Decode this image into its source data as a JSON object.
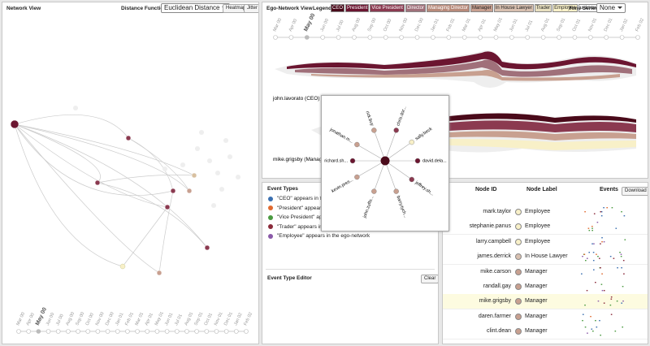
{
  "network": {
    "title": "Network View",
    "distance_label": "Distance Function:",
    "distance_value": "Euclidean Distance",
    "heatmap": "Heatmap",
    "jitter": "Jitter",
    "timeline": [
      "Mar 00",
      "Apr 00",
      "May 00",
      "Jun 00",
      "Jul 00",
      "Aug 00",
      "Sep 00",
      "Oct 00",
      "Nov 00",
      "Dec 00",
      "Jan 01",
      "Feb 01",
      "Mar 01",
      "Apr 01",
      "May 01",
      "Jun 01",
      "Jul 01",
      "Aug 01",
      "Sep 01",
      "Oct 01",
      "Nov 01",
      "Dec 01",
      "Jan 02",
      "Feb 02"
    ]
  },
  "ego": {
    "title": "Ego-Network View",
    "legend_label": "Legend:",
    "legend": [
      "CEO",
      "President",
      "Vice President",
      "Director",
      "Managing Director",
      "Manager",
      "In House Lawyer",
      "Trader",
      "Employee",
      "unknown"
    ],
    "time_series_label": "Time Series:",
    "time_series_value": "None",
    "timeline": [
      "Mar 00",
      "Apr 00",
      "May 00",
      "Jun 00",
      "Jul 00",
      "Aug 00",
      "Sep 00",
      "Oct 00",
      "Nov 00",
      "Dec 00",
      "Jan 01",
      "Feb 01",
      "Mar 01",
      "Apr 01",
      "May 01",
      "Jun 01",
      "Jul 01",
      "Aug 01",
      "Sep 01",
      "Oct 01",
      "Nov 01",
      "Dec 01",
      "Jan 02",
      "Feb 02"
    ],
    "streams": [
      "john.lavorato (CEO)",
      "mike.grigsby (Manager)"
    ]
  },
  "popup": {
    "nodes": [
      "rick.buy",
      "chris.dor...",
      "sally.beck",
      "jonathan.m...",
      "richard.sh...",
      "david.dela...",
      "kevin.pres...",
      "jeffrey.sh...",
      "john.zuffe...",
      "barry.tych..."
    ]
  },
  "event_types": {
    "title": "Event Types",
    "items": [
      "\"CEO\" appears in the ego-network",
      "\"President\" appears in the ego-network",
      "\"Vice President\" appears in the ego-network",
      "\"Trader\" appears in the ego-network",
      "\"Employee\" appears in the ego-network"
    ],
    "editor_title": "Event Type Editor",
    "clear": "Clear"
  },
  "table": {
    "headers": [
      "Node ID",
      "Node Label",
      "Events"
    ],
    "download": "Download",
    "rows": [
      [
        "mark.taylor",
        "Employee"
      ],
      [
        "stephanie.panus",
        "Employee"
      ],
      [
        "larry.campbell",
        "Employee"
      ],
      [
        "james.derrick",
        "In House Lawyer"
      ],
      [
        "mike.carson",
        "Manager"
      ],
      [
        "randall.gay",
        "Manager"
      ],
      [
        "mike.grigsby",
        "Manager"
      ],
      [
        "daren.farmer",
        "Manager"
      ],
      [
        "clint.dean",
        "Manager"
      ]
    ]
  }
}
